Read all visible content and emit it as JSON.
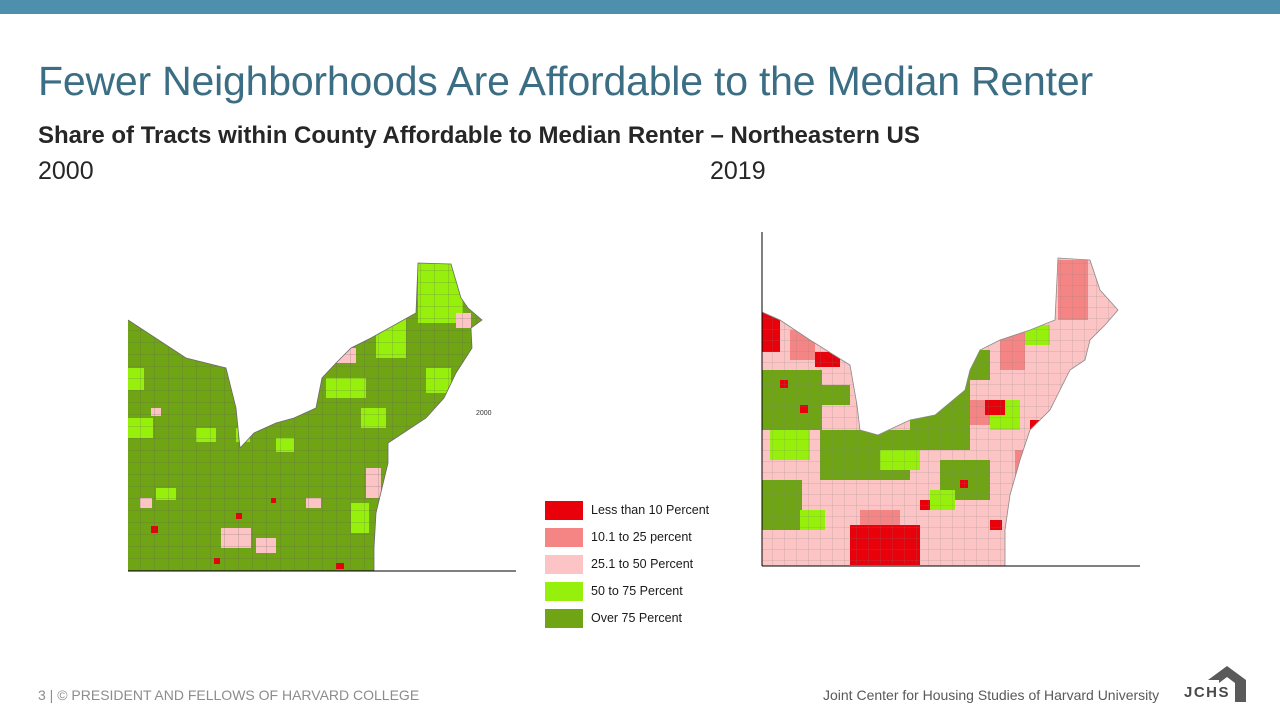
{
  "slide": {
    "title": "Fewer Neighborhoods Are Affordable to the Median Renter",
    "subtitle": "Share of Tracts within County Affordable to Median Renter – Northeastern US"
  },
  "maps": [
    {
      "year_label": "2000",
      "inset_label": "2000"
    },
    {
      "year_label": "2019"
    }
  ],
  "legend": [
    {
      "label": "Less than 10 Percent",
      "color": "#e8000b"
    },
    {
      "label": "10.1 to 25 percent",
      "color": "#f58585"
    },
    {
      "label": "25.1 to 50 Percent",
      "color": "#fcc4c4"
    },
    {
      "label": "50 to 75 Percent",
      "color": "#96f00c"
    },
    {
      "label": "Over 75 Percent",
      "color": "#6fa514"
    }
  ],
  "footer": {
    "left": "3 | © PRESIDENT AND FELLOWS OF HARVARD COLLEGE",
    "right": "Joint Center for Housing Studies of Harvard University",
    "logo_text": "JCHS"
  },
  "colors": {
    "accent": "#4d8fac",
    "title": "#3b6e84"
  }
}
